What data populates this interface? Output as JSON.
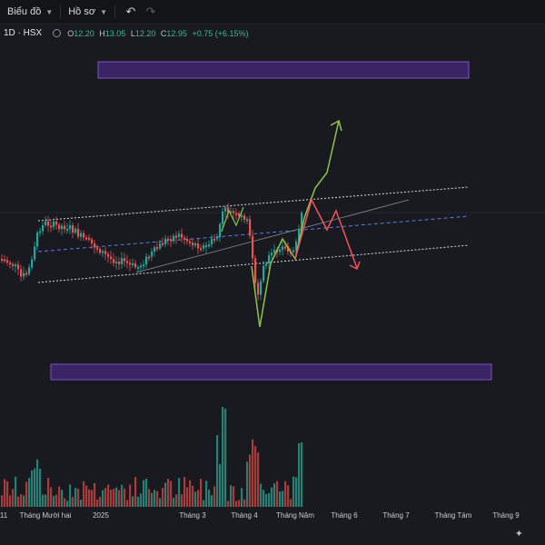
{
  "toolbar": {
    "chart_menu": "Biểu đồ",
    "profile_menu": "Hồ sơ",
    "undo_icon": "undo-icon",
    "redo_icon": "redo-icon"
  },
  "legend": {
    "symbol": "1D · HSX",
    "open_label": "O",
    "open": "12.20",
    "high_label": "H",
    "high": "13.05",
    "low_label": "L",
    "low": "12.20",
    "close_label": "C",
    "close": "12.95",
    "change": "+0.75 (+6.15%)"
  },
  "xaxis": [
    "11",
    "Tháng Mười hai",
    "2025",
    "Tháng 3",
    "Tháng 4",
    "Tháng Năm",
    "Tháng 6",
    "Tháng 7",
    "Tháng Tám",
    "Tháng 9"
  ],
  "colors": {
    "up": "#26a69a",
    "down": "#ef5350",
    "bull_path": "#8bc34a",
    "bear_path": "#f2545b",
    "zone": "#4a2a78",
    "zone_border": "#7a52c8"
  },
  "corner_icon": "magic-wand-icon"
}
